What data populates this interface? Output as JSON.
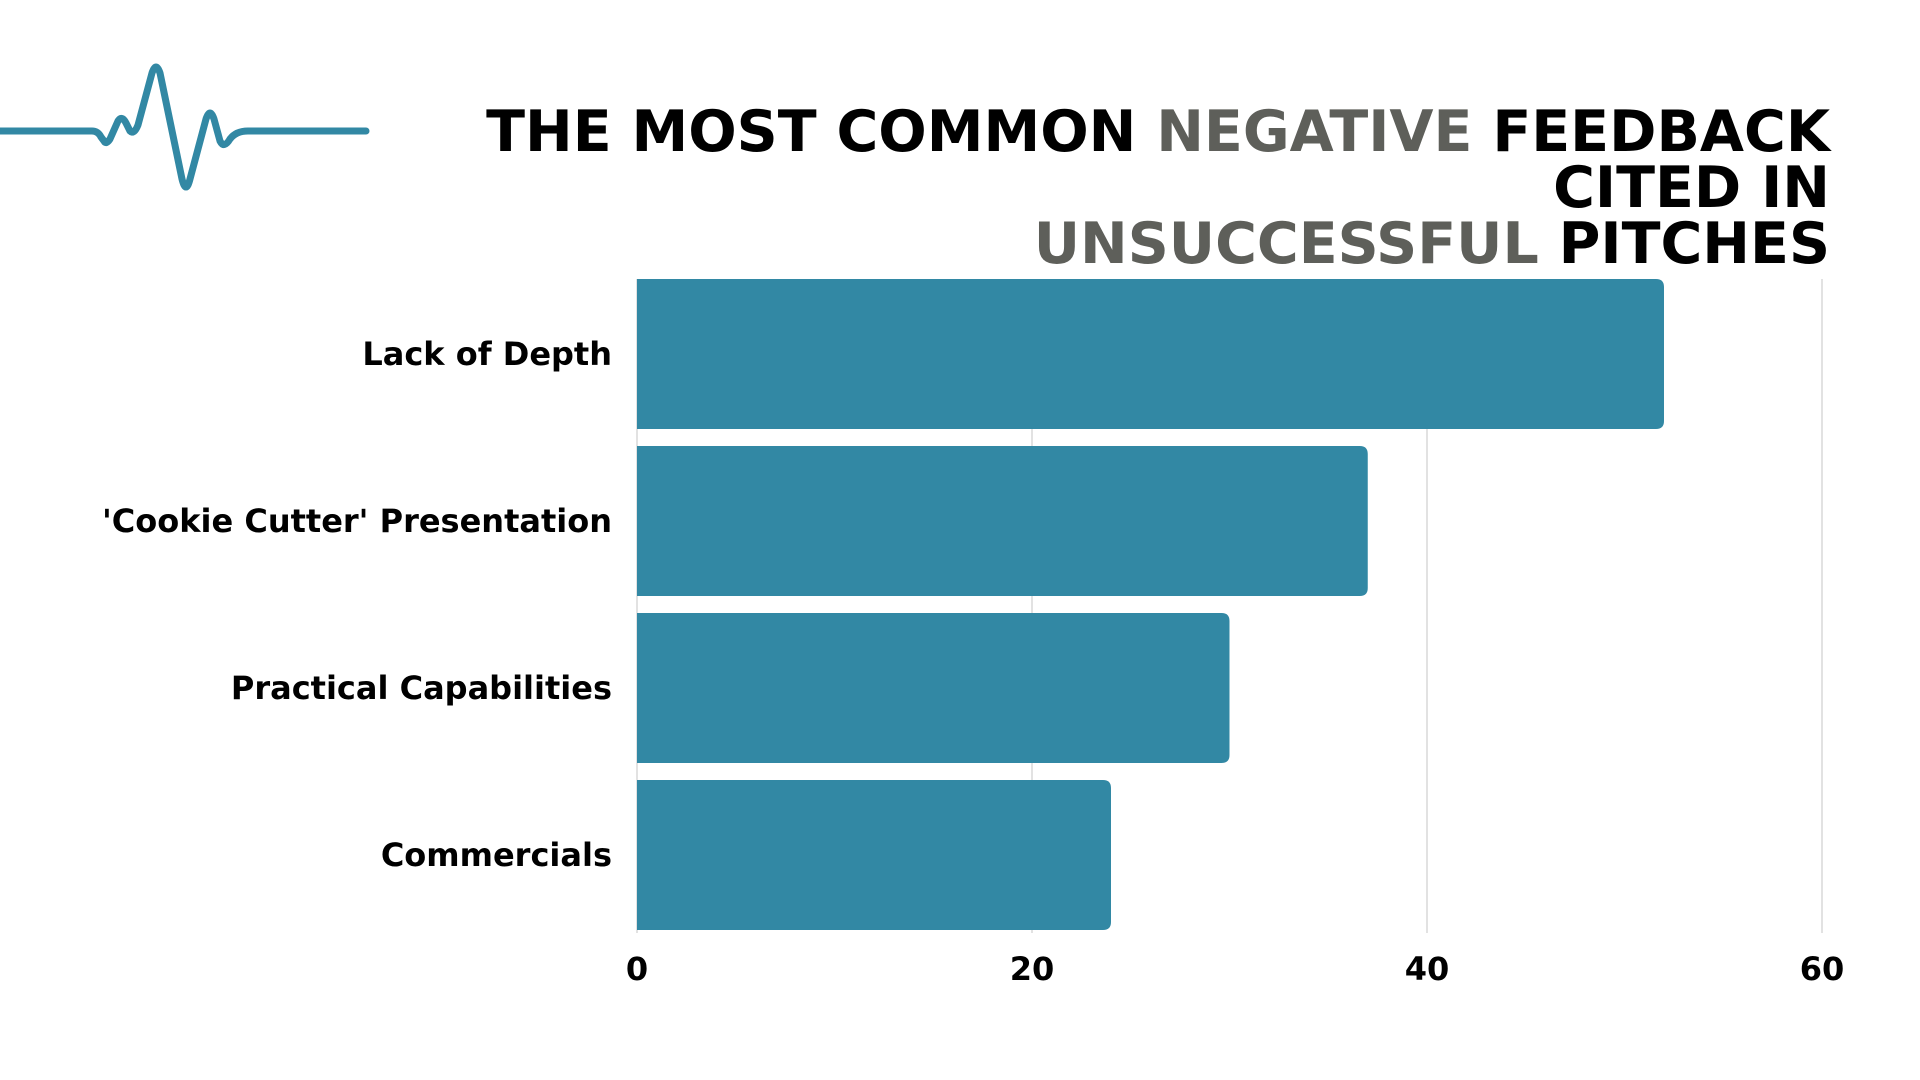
{
  "title": {
    "parts": [
      {
        "text": "THE MOST COMMON ",
        "accent": false
      },
      {
        "text": "NEGATIVE",
        "accent": true
      },
      {
        "text": " FEEDBACK CITED IN",
        "accent": false
      },
      {
        "text": "UNSUCCESSFUL",
        "accent": true
      },
      {
        "text": " PITCHES",
        "accent": false
      }
    ]
  },
  "colors": {
    "bar": "#3288a4",
    "title_accent": "#5e5f5a",
    "grid": "#d9d9d9",
    "heartbeat": "#3288a4"
  },
  "icons": {
    "heartbeat": "heartbeat-line-icon"
  },
  "chart_data": {
    "type": "bar",
    "orientation": "horizontal",
    "title": "THE MOST COMMON NEGATIVE FEEDBACK CITED IN UNSUCCESSFUL PITCHES",
    "categories": [
      "Lack of Depth",
      "'Cookie Cutter' Presentation",
      "Practical Capabilities",
      "Commercials"
    ],
    "values": [
      52,
      37,
      30,
      24
    ],
    "xlabel": "",
    "ylabel": "",
    "xlim": [
      0,
      60
    ],
    "xticks": [
      0,
      20,
      40,
      60
    ],
    "grid": true,
    "legend": "none"
  }
}
